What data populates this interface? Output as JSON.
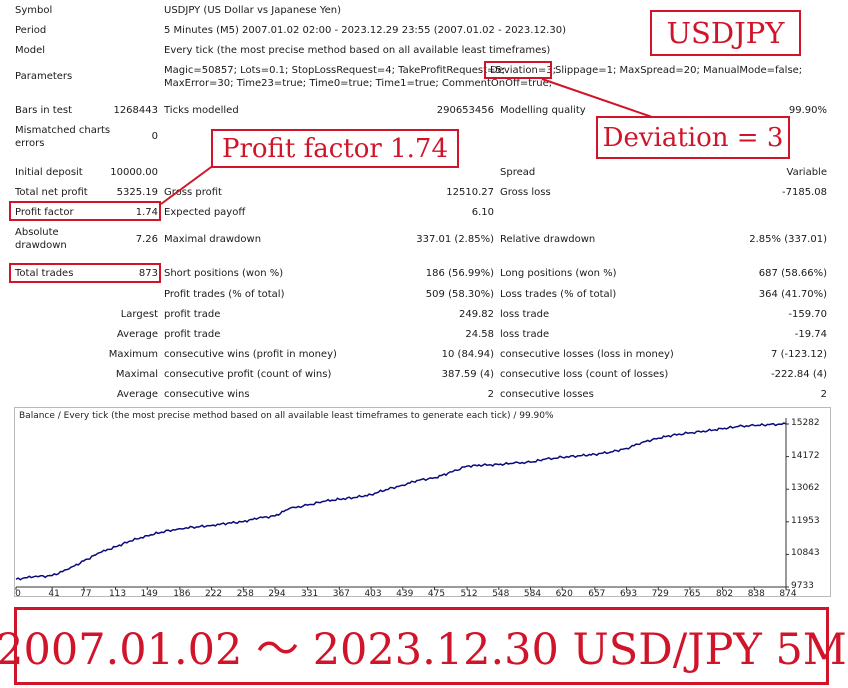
{
  "header_rows": {
    "symbol": {
      "label": "Symbol",
      "value": "USDJPY (US Dollar vs Japanese Yen)"
    },
    "period": {
      "label": "Period",
      "value": "5 Minutes (M5) 2007.01.02 02:00 - 2023.12.29 23:55 (2007.01.02 - 2023.12.30)"
    },
    "model": {
      "label": "Model",
      "value": "Every tick (the most precise method based on all available least timeframes)"
    },
    "parameters": {
      "label": "Parameters",
      "line1_a": "Magic=50857; Lots=0.1; StopLossRequest=4; TakeProfitRequest=5;",
      "line1_b": "Deviation=3;",
      "line1_c": "Slippage=1; MaxSpread=20; ManualMode=false;",
      "line2": "MaxError=30; Time23=true; Time0=true; Time1=true; CommentOnOff=true;"
    }
  },
  "stats": {
    "bars_label": "Bars in test",
    "bars_value": "1268443",
    "ticks_label": "Ticks modelled",
    "ticks_value": "290653456",
    "quality_label": "Modelling quality",
    "quality_value": "99.90%",
    "mismatch_label_1": "Mismatched charts",
    "mismatch_label_2": "errors",
    "mismatch_value": "0",
    "deposit_label": "Initial deposit",
    "deposit_value": "10000.00",
    "spread_label": "Spread",
    "spread_value": "Variable",
    "net_label": "Total net profit",
    "net_value": "5325.19",
    "gross_profit_label": "Gross profit",
    "gross_profit_value": "12510.27",
    "gross_loss_label": "Gross loss",
    "gross_loss_value": "-7185.08",
    "pf_label": "Profit factor",
    "pf_value": "1.74",
    "payoff_label": "Expected payoff",
    "payoff_value": "6.10",
    "abs_dd_label_1": "Absolute",
    "abs_dd_label_2": "drawdown",
    "abs_dd_value": "7.26",
    "max_dd_label": "Maximal drawdown",
    "max_dd_value": "337.01 (2.85%)",
    "rel_dd_label": "Relative drawdown",
    "rel_dd_value": "2.85% (337.01)",
    "trades_label": "Total trades",
    "trades_value": "873",
    "short_label": "Short positions (won %)",
    "short_value": "186 (56.99%)",
    "long_label": "Long positions (won %)",
    "long_value": "687 (58.66%)",
    "pt_label": "Profit trades (% of total)",
    "pt_value": "509 (58.30%)",
    "lt_label": "Loss trades (% of total)",
    "lt_value": "364 (41.70%)",
    "largest_label": "Largest",
    "largest_profit_label": "profit trade",
    "largest_profit_value": "249.82",
    "largest_loss_label": "loss trade",
    "largest_loss_value": "-159.70",
    "average_label": "Average",
    "average_profit_label": "profit trade",
    "average_profit_value": "24.58",
    "average_loss_label": "loss trade",
    "average_loss_value": "-19.74",
    "maximum_label": "Maximum",
    "max_cw_label": "consecutive wins (profit in money)",
    "max_cw_value": "10 (84.94)",
    "max_cl_label": "consecutive losses (loss in money)",
    "max_cl_value": "7 (-123.12)",
    "maximal_label": "Maximal",
    "mx_cp_label": "consecutive profit (count of wins)",
    "mx_cp_value": "387.59 (4)",
    "mx_cl_label": "consecutive loss (count of losses)",
    "mx_cl_value": "-222.84 (4)",
    "avg2_label": "Average",
    "avg_cw_label": "consecutive wins",
    "avg_cw_value": "2",
    "avg_cl_label": "consecutive losses",
    "avg_cl_value": "2"
  },
  "callouts": {
    "symbol": "USDJPY",
    "deviation": "Deviation = 3",
    "profit_factor": "Profit factor 1.74",
    "banner": "2007.01.02 ～ 2023.12.30 USD/JPY 5M"
  },
  "colors": {
    "accent": "#d0142a",
    "line": "#0b0b7a"
  },
  "chart_data": {
    "type": "line",
    "title": "Balance / Every tick (the most precise method based on all available least timeframes to generate each tick) / 99.90%",
    "y_ticks": [
      "15282",
      "14172",
      "13062",
      "11953",
      "10843",
      "9733"
    ],
    "y_tick_values": [
      15282,
      14172,
      13062,
      11953,
      10843,
      9733
    ],
    "x_ticks": [
      "0",
      "41",
      "77",
      "113",
      "149",
      "186",
      "222",
      "258",
      "294",
      "331",
      "367",
      "403",
      "439",
      "475",
      "512",
      "548",
      "584",
      "620",
      "657",
      "693",
      "729",
      "765",
      "802",
      "838",
      "874"
    ],
    "x_tick_values": [
      0,
      41,
      77,
      113,
      149,
      186,
      222,
      258,
      294,
      331,
      367,
      403,
      439,
      475,
      512,
      548,
      584,
      620,
      657,
      693,
      729,
      765,
      802,
      838,
      874
    ],
    "xlim": [
      0,
      874
    ],
    "ylim": [
      9733,
      15282
    ],
    "series": [
      {
        "x": [
          0,
          20,
          41,
          60,
          77,
          95,
          113,
          130,
          149,
          165,
          186,
          205,
          222,
          240,
          258,
          275,
          294,
          310,
          331,
          350,
          367,
          385,
          403,
          420,
          439,
          455,
          475,
          490,
          512,
          530,
          548,
          565,
          584,
          600,
          620,
          640,
          657,
          675,
          693,
          710,
          729,
          745,
          765,
          785,
          802,
          820,
          838,
          855,
          874
        ],
        "values": [
          10000,
          10080,
          10120,
          10350,
          10620,
          10900,
          11100,
          11300,
          11480,
          11600,
          11720,
          11780,
          11830,
          11900,
          11960,
          12080,
          12150,
          12400,
          12520,
          12650,
          12720,
          12780,
          12880,
          13050,
          13200,
          13360,
          13450,
          13600,
          13850,
          13880,
          13900,
          13950,
          13980,
          14080,
          14150,
          14200,
          14250,
          14330,
          14450,
          14650,
          14800,
          14900,
          14980,
          15050,
          15120,
          15200,
          15230,
          15260,
          15282
        ]
      }
    ]
  }
}
